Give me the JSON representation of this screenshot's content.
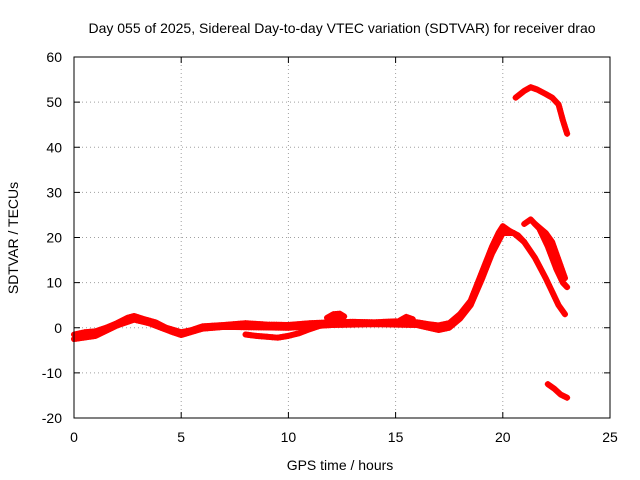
{
  "chart_data": {
    "type": "scatter",
    "title": "Day 055 of 2025, Sidereal Day-to-day VTEC variation (SDTVAR) for receiver drao",
    "xlabel": "GPS time / hours",
    "ylabel": "SDTVAR / TECUs",
    "xlim": [
      0,
      25
    ],
    "ylim": [
      -20,
      60
    ],
    "xticks": [
      0,
      5,
      10,
      15,
      20,
      25
    ],
    "yticks": [
      -20,
      -10,
      0,
      10,
      20,
      30,
      40,
      50,
      60
    ],
    "grid": true,
    "legend": "none",
    "series_color": "#ff0000",
    "series": [
      {
        "name": "main",
        "points": [
          [
            0,
            -1.5
          ],
          [
            0.5,
            -1
          ],
          [
            1,
            -0.8
          ],
          [
            1.5,
            0
          ],
          [
            2,
            1
          ],
          [
            2.5,
            2.2
          ],
          [
            2.8,
            2.6
          ],
          [
            3.2,
            2
          ],
          [
            3.8,
            1.2
          ],
          [
            4.3,
            0
          ],
          [
            5,
            -1
          ],
          [
            5.5,
            -0.5
          ],
          [
            6,
            0.3
          ],
          [
            7,
            0.6
          ],
          [
            8,
            1
          ],
          [
            9,
            0.7
          ],
          [
            10,
            0.6
          ],
          [
            11,
            1
          ],
          [
            12,
            1.2
          ],
          [
            13,
            1.3
          ],
          [
            14,
            1.2
          ],
          [
            15,
            1.4
          ],
          [
            16,
            1.2
          ],
          [
            16.5,
            0.8
          ],
          [
            17,
            0.5
          ],
          [
            17.5,
            1
          ],
          [
            18,
            3
          ],
          [
            18.5,
            6
          ],
          [
            19,
            12
          ],
          [
            19.5,
            18
          ],
          [
            19.8,
            21
          ],
          [
            20,
            22.5
          ],
          [
            20.3,
            21.5
          ],
          [
            20.7,
            20.5
          ],
          [
            21,
            19
          ]
        ]
      },
      {
        "name": "main-offset-band",
        "points": [
          [
            0,
            -2.5
          ],
          [
            1,
            -1.8
          ],
          [
            2,
            0.5
          ],
          [
            2.8,
            1.8
          ],
          [
            3.5,
            1
          ],
          [
            4.5,
            -0.8
          ],
          [
            5,
            -1.6
          ],
          [
            6,
            -0.2
          ],
          [
            7,
            0.2
          ],
          [
            10,
            0
          ],
          [
            12,
            0.6
          ],
          [
            14,
            0.8
          ],
          [
            16,
            0.6
          ],
          [
            17,
            -0.5
          ],
          [
            17.5,
            0
          ],
          [
            18,
            2
          ],
          [
            18.5,
            5
          ],
          [
            19,
            10.5
          ],
          [
            19.5,
            16.5
          ],
          [
            20,
            21
          ],
          [
            20.5,
            21
          ]
        ]
      },
      {
        "name": "dip-8-to-10h",
        "points": [
          [
            8,
            -1.5
          ],
          [
            8.5,
            -1.8
          ],
          [
            9,
            -2
          ],
          [
            9.5,
            -2.2
          ],
          [
            10,
            -1.8
          ],
          [
            10.5,
            -1.2
          ],
          [
            11,
            -0.3
          ],
          [
            11.5,
            0.5
          ],
          [
            12,
            1.5
          ],
          [
            12.5,
            2.5
          ]
        ]
      },
      {
        "name": "lump-12h",
        "points": [
          [
            11.8,
            2.2
          ],
          [
            12.1,
            3
          ],
          [
            12.4,
            3.1
          ],
          [
            12.6,
            2.5
          ]
        ]
      },
      {
        "name": "lump-15-5h",
        "points": [
          [
            15.2,
            1.6
          ],
          [
            15.5,
            2.4
          ],
          [
            15.8,
            1.9
          ]
        ]
      },
      {
        "name": "high-arc",
        "points": [
          [
            20.6,
            51
          ],
          [
            21,
            52.5
          ],
          [
            21.3,
            53.3
          ],
          [
            21.6,
            52.8
          ],
          [
            22,
            51.8
          ],
          [
            22.3,
            51
          ],
          [
            22.6,
            49.5
          ],
          [
            22.8,
            46
          ],
          [
            23,
            43
          ]
        ]
      },
      {
        "name": "descending-a",
        "points": [
          [
            20.5,
            21
          ],
          [
            21,
            19
          ],
          [
            21.5,
            15.5
          ],
          [
            22,
            11
          ],
          [
            22.3,
            8
          ],
          [
            22.6,
            5
          ],
          [
            22.9,
            3
          ]
        ]
      },
      {
        "name": "descending-b",
        "points": [
          [
            21,
            23
          ],
          [
            21.3,
            24
          ],
          [
            21.7,
            22
          ],
          [
            22.1,
            18
          ],
          [
            22.5,
            13
          ],
          [
            22.8,
            10
          ],
          [
            23,
            9
          ]
        ]
      },
      {
        "name": "descending-c",
        "points": [
          [
            21.5,
            23
          ],
          [
            22,
            21
          ],
          [
            22.3,
            19
          ],
          [
            22.6,
            15
          ],
          [
            22.9,
            11
          ]
        ]
      },
      {
        "name": "low-tail",
        "points": [
          [
            22.1,
            -12.5
          ],
          [
            22.4,
            -13.5
          ],
          [
            22.7,
            -14.8
          ],
          [
            23,
            -15.5
          ]
        ]
      }
    ]
  }
}
